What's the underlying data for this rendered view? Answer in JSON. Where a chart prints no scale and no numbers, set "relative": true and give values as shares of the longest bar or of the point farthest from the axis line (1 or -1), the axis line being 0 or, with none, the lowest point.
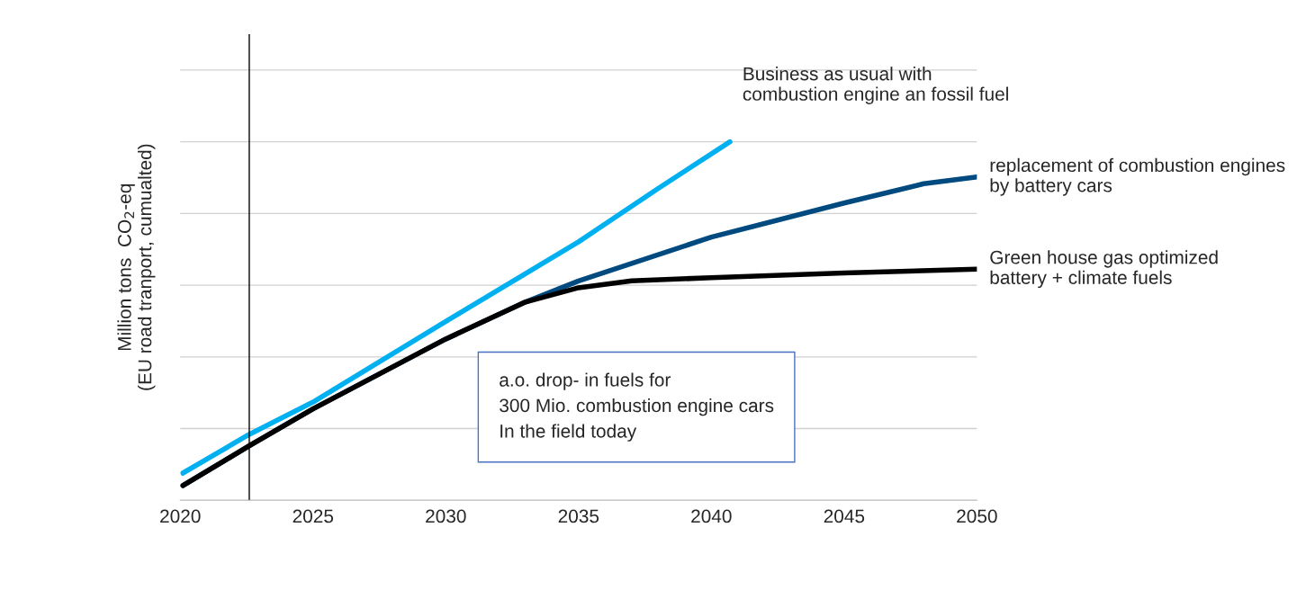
{
  "chart_data": {
    "type": "line",
    "relative": true,
    "ylabel": "Million tons  CO$_{2}$-eq\n(EU road tranport, cumualted)",
    "xlim": [
      2020,
      2050
    ],
    "xticks": [
      2020,
      2025,
      2030,
      2035,
      2040,
      2045,
      2050
    ],
    "grid": "y",
    "series": [
      {
        "name": "Business as usual with\ncombustion engine an fossil fuel",
        "color": "#00b0f0",
        "x": [
          2020.1,
          2022.6,
          2025,
          2030,
          2035,
          2038,
          2040.7
        ],
        "values": [
          0.076,
          0.184,
          0.274,
          0.499,
          0.721,
          0.87,
          1.0
        ]
      },
      {
        "name": "replacement of combustion engines\nby battery cars",
        "color": "#004a80",
        "x": [
          2020.1,
          2022.6,
          2025,
          2030,
          2033,
          2035,
          2040,
          2045,
          2048,
          2050
        ],
        "values": [
          0.041,
          0.152,
          0.255,
          0.45,
          0.553,
          0.612,
          0.734,
          0.829,
          0.883,
          0.902
        ]
      },
      {
        "name": "Green house gas optimized\nbattery + climate fuels",
        "color": "#000000",
        "x": [
          2020.1,
          2022.6,
          2025,
          2030,
          2033,
          2035,
          2037,
          2040,
          2045,
          2050
        ],
        "values": [
          0.041,
          0.152,
          0.255,
          0.45,
          0.553,
          0.593,
          0.612,
          0.621,
          0.634,
          0.645
        ]
      }
    ],
    "ref_lines": [
      {
        "axis": "x",
        "value": 2022.6,
        "color": "#000000"
      }
    ],
    "annotations": [
      "a.o. drop- in fuels for\n300 Mio. combustion engine cars\nIn the field today"
    ]
  }
}
